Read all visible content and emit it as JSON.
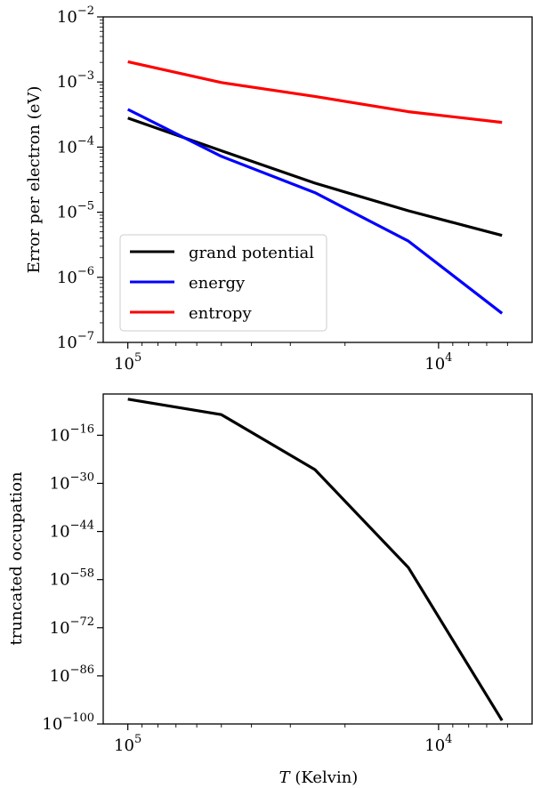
{
  "chart_data": [
    {
      "type": "line",
      "title": "",
      "xlabel": "",
      "ylabel": "Error per electron (eV)",
      "x_scale": "log",
      "x_inverted": true,
      "x": [
        100000,
        50000,
        25000,
        12500,
        6250
      ],
      "x_range": [
        120000,
        5000
      ],
      "xticks": [
        {
          "value": 100000,
          "base": "10",
          "exp": "5"
        },
        {
          "value": 10000,
          "base": "10",
          "exp": "4"
        }
      ],
      "y_scale": "log",
      "ylim": [
        1e-07,
        0.01
      ],
      "yticks": [
        {
          "value": 0.01,
          "base": "10",
          "exp": "−2"
        },
        {
          "value": 0.001,
          "base": "10",
          "exp": "−3"
        },
        {
          "value": 0.0001,
          "base": "10",
          "exp": "−4"
        },
        {
          "value": 1e-05,
          "base": "10",
          "exp": "−5"
        },
        {
          "value": 1e-06,
          "base": "10",
          "exp": "−6"
        },
        {
          "value": 1e-07,
          "base": "10",
          "exp": "−7"
        }
      ],
      "legend_position": "lower-left",
      "series": [
        {
          "name": "grand potential",
          "color": "#000000",
          "values": [
            0.00028,
            8.8e-05,
            2.8e-05,
            1.05e-05,
            4.4e-06
          ]
        },
        {
          "name": "energy",
          "color": "#0000ff",
          "values": [
            0.00038,
            7.2e-05,
            2e-05,
            3.6e-06,
            2.8e-07
          ]
        },
        {
          "name": "entropy",
          "color": "#ff0000",
          "values": [
            0.00205,
            0.00098,
            0.0006,
            0.00035,
            0.00024
          ]
        }
      ]
    },
    {
      "type": "line",
      "title": "",
      "xlabel_italic": "T",
      "xlabel_rest": " (Kelvin)",
      "ylabel": "truncated occupation",
      "x_scale": "log",
      "x_inverted": true,
      "x": [
        100000,
        50000,
        25000,
        12500,
        6250
      ],
      "x_range": [
        120000,
        5000
      ],
      "xticks": [
        {
          "value": 100000,
          "base": "10",
          "exp": "5"
        },
        {
          "value": 10000,
          "base": "10",
          "exp": "4"
        }
      ],
      "y_scale": "log",
      "ylim": [
        1e-100,
        0.0001
      ],
      "yticks": [
        {
          "value_exp": -16,
          "base": "10",
          "exp": "−16"
        },
        {
          "value_exp": -30,
          "base": "10",
          "exp": "−30"
        },
        {
          "value_exp": -44,
          "base": "10",
          "exp": "−44"
        },
        {
          "value_exp": -58,
          "base": "10",
          "exp": "−58"
        },
        {
          "value_exp": -72,
          "base": "10",
          "exp": "−72"
        },
        {
          "value_exp": -86,
          "base": "10",
          "exp": "−86"
        },
        {
          "value_exp": -100,
          "base": "10",
          "exp": "−100"
        }
      ],
      "series": [
        {
          "color": "#000000",
          "values_exp": [
            -5.5,
            -10,
            -26,
            -54.5,
            -99
          ]
        }
      ]
    }
  ]
}
